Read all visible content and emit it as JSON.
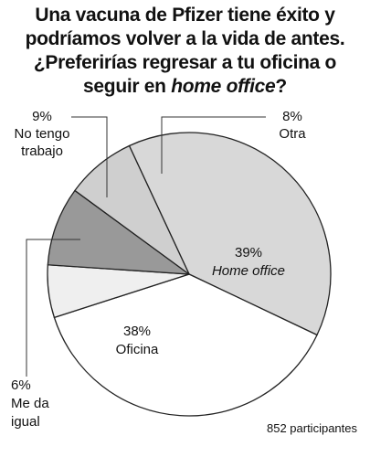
{
  "title": {
    "line1": "Una vacuna de Pfizer tiene éxito y",
    "line2": "podríamos volver a la vida de antes.",
    "line3": "¿Preferirías regresar a tu oficina o",
    "line4_pre": "seguir en ",
    "line4_em": "home office",
    "line4_post": "?"
  },
  "footer": "852 participantes",
  "chart_data": {
    "type": "pie",
    "slices": [
      {
        "label": "Home office",
        "value": 39,
        "pct_text": "39%",
        "italic": true,
        "color": "#d8d8d8"
      },
      {
        "label": "Oficina",
        "value": 38,
        "pct_text": "38%",
        "color": "#ffffff"
      },
      {
        "label": "Me da igual",
        "label_lines": [
          "Me da",
          "igual"
        ],
        "value": 6,
        "pct_text": "6%",
        "color": "#efefef"
      },
      {
        "label": "No tengo trabajo",
        "label_lines": [
          "No tengo",
          "trabajo"
        ],
        "value": 9,
        "pct_text": "9%",
        "color": "#999999"
      },
      {
        "label": "Otra",
        "value": 8,
        "pct_text": "8%",
        "color": "#cfcfcf"
      }
    ]
  }
}
